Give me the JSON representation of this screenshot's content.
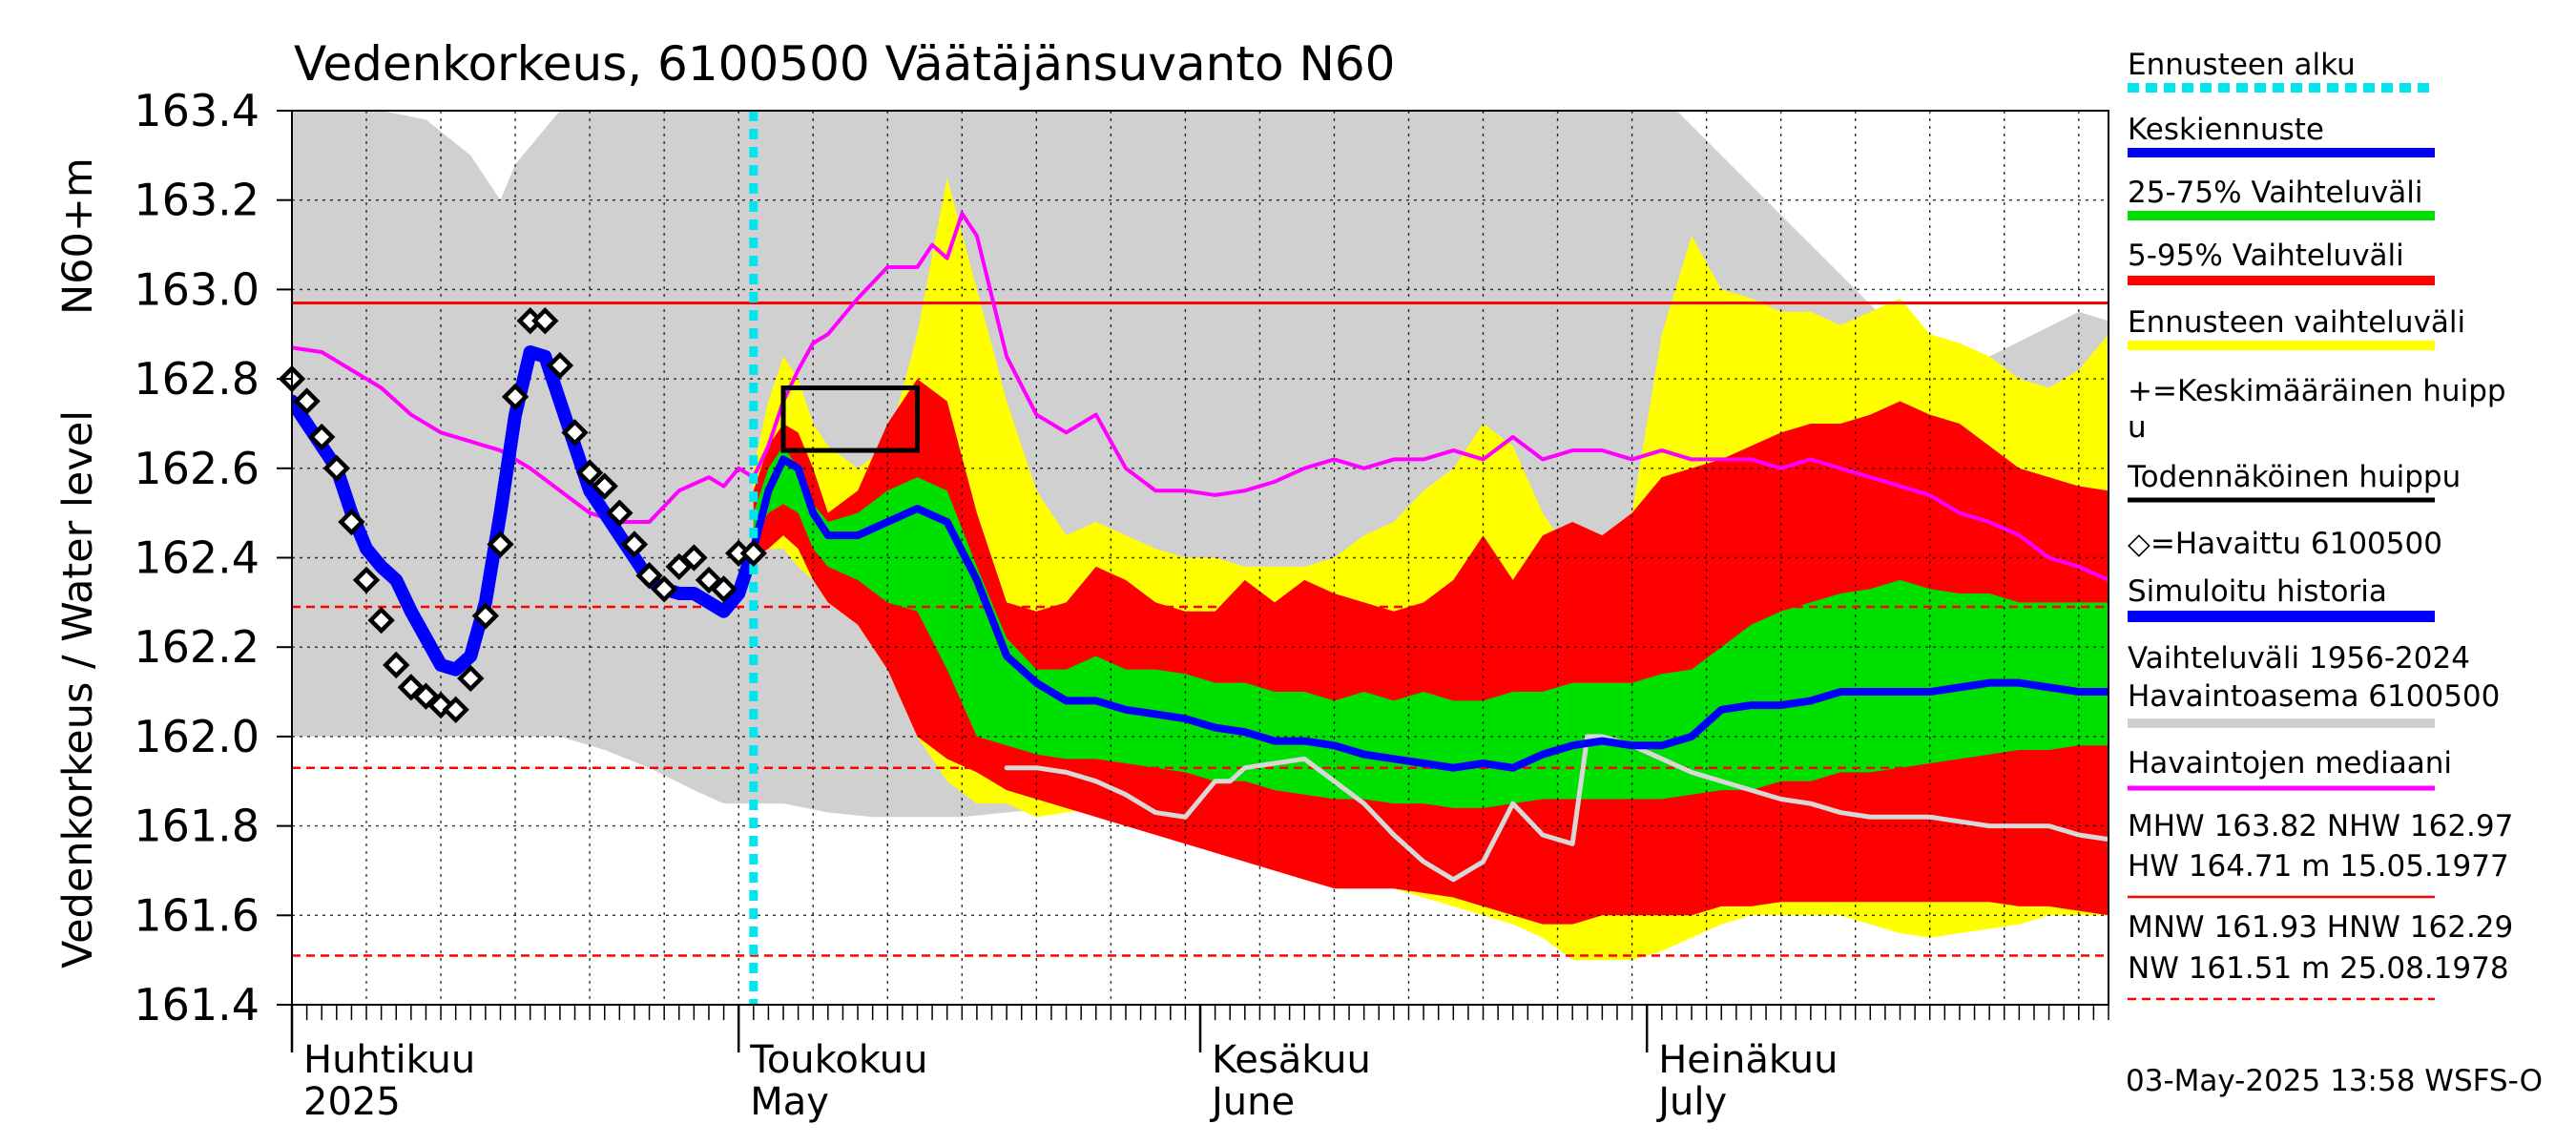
{
  "chart_data": {
    "type": "line",
    "title": "Vedenkorkeus, 6100500 Väätäjänsuvanto N60",
    "ylabel_main": "Vedenkorkeus / Water level",
    "ylabel_unit": "N60+m",
    "ylim": [
      161.4,
      163.4
    ],
    "yticks": [
      "161.4",
      "161.6",
      "161.8",
      "162.0",
      "162.2",
      "162.4",
      "162.6",
      "162.8",
      "163.0",
      "163.2",
      "163.4"
    ],
    "xrange_days": [
      0,
      122
    ],
    "month_labels": [
      {
        "day": 0,
        "fi": "Huhtikuu",
        "en": "2025"
      },
      {
        "day": 30,
        "fi": "Toukokuu",
        "en": "May"
      },
      {
        "day": 61,
        "fi": "Kesäkuu",
        "en": "June"
      },
      {
        "day": 91,
        "fi": "Heinäkuu",
        "en": "July"
      }
    ],
    "forecast_start_day": 31,
    "reference_lines": {
      "NHW": 162.97,
      "HNW": 162.29,
      "MNW": 161.93,
      "NW": 161.51
    },
    "legend": [
      {
        "label": "Ennusteen alku",
        "color": "#00e5ee",
        "style": "dotted"
      },
      {
        "label": "Keskiennuste",
        "color": "#0000ff",
        "style": "line"
      },
      {
        "label": "25-75% Vaihteluväli",
        "color": "#00e000",
        "style": "line"
      },
      {
        "label": "5-95% Vaihteluväli",
        "color": "#ff0000",
        "style": "line"
      },
      {
        "label": "Ennusteen vaihteluväli",
        "color": "#ffff00",
        "style": "line"
      },
      {
        "label": "+=Keskimääräinen huipp",
        "label2": "u",
        "color": "#000000",
        "style": "none"
      },
      {
        "label": "Todennäköinen huippu",
        "color": "#000000",
        "style": "line"
      },
      {
        "label": "◇=Havaittu 6100500",
        "color": "#000000",
        "style": "none"
      },
      {
        "label": "Simuloitu historia",
        "color": "#0000ff",
        "style": "line"
      },
      {
        "label": "Vaihteluväli 1956-2024",
        "label2": " Havaintoasema 6100500",
        "color": "#d0d0d0",
        "style": "line"
      },
      {
        "label": "Havaintojen mediaani",
        "color": "#ff00ff",
        "style": "line"
      }
    ],
    "stats": [
      {
        "line1": "MHW 163.82 NHW 162.97",
        "line2": "HW 164.71 m 15.05.1977",
        "color": "#ff0000",
        "style": "solid"
      },
      {
        "line1": "MNW 161.93 HNW 162.29",
        "line2": "NW 161.51 m 25.08.1978",
        "color": "#ff0000",
        "style": "dashed"
      }
    ],
    "timestamp": "03-May-2025 13:58 WSFS-O",
    "probable_peak_box": {
      "day_start": 33,
      "day_end": 42,
      "y_low": 162.64,
      "y_high": 162.78
    },
    "history_band": {
      "color": "#d0d0d0",
      "x": [
        0,
        3,
        6,
        9,
        12,
        14,
        15,
        18,
        21,
        24,
        27,
        29,
        31,
        33,
        36,
        39,
        42,
        45,
        48,
        51,
        54,
        57,
        60,
        63,
        66,
        69,
        72,
        75,
        78,
        81,
        84,
        87,
        90,
        93,
        96,
        99,
        102,
        105,
        108,
        111,
        114,
        117,
        120,
        122
      ],
      "upper": [
        163.4,
        163.4,
        163.4,
        163.38,
        163.3,
        163.2,
        163.28,
        163.4,
        163.4,
        163.4,
        163.4,
        163.4,
        163.4,
        163.4,
        163.4,
        163.4,
        163.4,
        163.4,
        163.4,
        163.4,
        163.4,
        163.4,
        163.4,
        163.4,
        163.4,
        163.4,
        163.4,
        163.4,
        163.4,
        163.4,
        163.4,
        163.4,
        163.4,
        163.4,
        163.3,
        163.2,
        163.1,
        163.0,
        162.9,
        162.8,
        162.85,
        162.9,
        162.95,
        162.93
      ],
      "lower": [
        162.0,
        162.0,
        162.0,
        162.0,
        162.0,
        162.0,
        162.0,
        162.0,
        161.97,
        161.93,
        161.88,
        161.85,
        161.85,
        161.85,
        161.83,
        161.82,
        161.82,
        161.82,
        161.83,
        161.84,
        161.85,
        161.86,
        161.85,
        161.84,
        161.85,
        161.86,
        161.88,
        161.9,
        161.92,
        161.93,
        161.93,
        161.92,
        161.92,
        161.92,
        161.92,
        161.92,
        161.92,
        161.92,
        161.92,
        161.92,
        161.92,
        161.92,
        161.92,
        161.92
      ]
    },
    "yellow_band": {
      "color": "#ffff00",
      "x": [
        31,
        32,
        33,
        34,
        35,
        36,
        38,
        40,
        42,
        44,
        46,
        48,
        50,
        52,
        54,
        56,
        58,
        60,
        62,
        64,
        66,
        68,
        70,
        72,
        74,
        76,
        78,
        80,
        82,
        84,
        86,
        88,
        90,
        92,
        94,
        96,
        98,
        100,
        102,
        104,
        106,
        108,
        110,
        112,
        114,
        116,
        118,
        120,
        122
      ],
      "upper": [
        162.6,
        162.75,
        162.85,
        162.8,
        162.7,
        162.65,
        162.6,
        162.65,
        162.9,
        163.25,
        163.0,
        162.75,
        162.55,
        162.45,
        162.48,
        162.45,
        162.42,
        162.4,
        162.4,
        162.38,
        162.38,
        162.38,
        162.4,
        162.45,
        162.48,
        162.55,
        162.6,
        162.7,
        162.65,
        162.5,
        162.4,
        162.45,
        162.5,
        162.9,
        163.12,
        163.0,
        162.98,
        162.95,
        162.95,
        162.92,
        162.95,
        162.98,
        162.9,
        162.88,
        162.85,
        162.8,
        162.78,
        162.82,
        162.9
      ],
      "lower": [
        162.4,
        162.42,
        162.42,
        162.38,
        162.35,
        162.3,
        162.25,
        162.15,
        162.0,
        161.9,
        161.85,
        161.85,
        161.82,
        161.83,
        161.84,
        161.84,
        161.82,
        161.8,
        161.78,
        161.76,
        161.74,
        161.72,
        161.7,
        161.68,
        161.66,
        161.64,
        161.62,
        161.6,
        161.58,
        161.55,
        161.5,
        161.5,
        161.5,
        161.52,
        161.55,
        161.58,
        161.6,
        161.6,
        161.6,
        161.6,
        161.58,
        161.56,
        161.55,
        161.56,
        161.57,
        161.58,
        161.6,
        161.6,
        161.6
      ]
    },
    "red_band": {
      "color": "#ff0000",
      "x": [
        31,
        32,
        33,
        34,
        35,
        36,
        38,
        40,
        42,
        44,
        46,
        48,
        50,
        52,
        54,
        56,
        58,
        60,
        62,
        64,
        66,
        68,
        70,
        72,
        74,
        76,
        78,
        80,
        82,
        84,
        86,
        88,
        90,
        92,
        94,
        96,
        98,
        100,
        102,
        104,
        106,
        108,
        110,
        112,
        114,
        116,
        118,
        120,
        122
      ],
      "upper": [
        162.55,
        162.65,
        162.7,
        162.68,
        162.6,
        162.5,
        162.55,
        162.7,
        162.8,
        162.75,
        162.5,
        162.3,
        162.28,
        162.3,
        162.38,
        162.35,
        162.3,
        162.28,
        162.28,
        162.35,
        162.3,
        162.35,
        162.32,
        162.3,
        162.28,
        162.3,
        162.35,
        162.45,
        162.35,
        162.45,
        162.48,
        162.45,
        162.5,
        162.58,
        162.6,
        162.62,
        162.65,
        162.68,
        162.7,
        162.7,
        162.72,
        162.75,
        162.72,
        162.7,
        162.65,
        162.6,
        162.58,
        162.56,
        162.55
      ],
      "lower": [
        162.4,
        162.42,
        162.45,
        162.42,
        162.35,
        162.3,
        162.25,
        162.15,
        162.0,
        161.95,
        161.92,
        161.88,
        161.86,
        161.84,
        161.82,
        161.8,
        161.78,
        161.76,
        161.74,
        161.72,
        161.7,
        161.68,
        161.66,
        161.66,
        161.66,
        161.65,
        161.64,
        161.62,
        161.6,
        161.58,
        161.58,
        161.6,
        161.6,
        161.6,
        161.6,
        161.62,
        161.62,
        161.63,
        161.63,
        161.63,
        161.63,
        161.63,
        161.63,
        161.63,
        161.63,
        161.62,
        161.62,
        161.61,
        161.6
      ]
    },
    "green_band": {
      "color": "#00e000",
      "x": [
        31,
        32,
        33,
        34,
        35,
        36,
        38,
        40,
        42,
        44,
        46,
        48,
        50,
        52,
        54,
        56,
        58,
        60,
        62,
        64,
        66,
        68,
        70,
        72,
        74,
        76,
        78,
        80,
        82,
        84,
        86,
        88,
        90,
        92,
        94,
        96,
        98,
        100,
        102,
        104,
        106,
        108,
        110,
        112,
        114,
        116,
        118,
        120,
        122
      ],
      "upper": [
        162.5,
        162.6,
        162.65,
        162.6,
        162.52,
        162.48,
        162.5,
        162.55,
        162.58,
        162.55,
        162.38,
        162.22,
        162.15,
        162.15,
        162.18,
        162.15,
        162.15,
        162.14,
        162.12,
        162.12,
        162.1,
        162.1,
        162.08,
        162.1,
        162.08,
        162.1,
        162.08,
        162.08,
        162.1,
        162.1,
        162.12,
        162.12,
        162.12,
        162.14,
        162.15,
        162.2,
        162.25,
        162.28,
        162.3,
        162.32,
        162.33,
        162.35,
        162.33,
        162.32,
        162.32,
        162.3,
        162.3,
        162.3,
        162.3
      ],
      "lower": [
        162.45,
        162.5,
        162.52,
        162.5,
        162.42,
        162.38,
        162.35,
        162.3,
        162.28,
        162.15,
        162.0,
        161.98,
        161.96,
        161.95,
        161.95,
        161.94,
        161.93,
        161.92,
        161.9,
        161.9,
        161.88,
        161.87,
        161.86,
        161.86,
        161.85,
        161.85,
        161.84,
        161.84,
        161.85,
        161.86,
        161.86,
        161.86,
        161.86,
        161.86,
        161.87,
        161.88,
        161.88,
        161.9,
        161.9,
        161.92,
        161.92,
        161.93,
        161.94,
        161.95,
        161.96,
        161.97,
        161.97,
        161.98,
        161.98
      ]
    },
    "series": [
      {
        "name": "Keskiennuste",
        "color": "#0000ff",
        "width": 8,
        "x": [
          31,
          32,
          33,
          34,
          35,
          36,
          38,
          40,
          42,
          44,
          46,
          48,
          50,
          52,
          54,
          56,
          58,
          60,
          62,
          64,
          66,
          68,
          70,
          72,
          74,
          76,
          78,
          80,
          82,
          84,
          86,
          88,
          90,
          92,
          94,
          96,
          98,
          100,
          102,
          104,
          106,
          108,
          110,
          112,
          114,
          116,
          118,
          120,
          122
        ],
        "y": [
          162.42,
          162.55,
          162.62,
          162.6,
          162.5,
          162.45,
          162.45,
          162.48,
          162.51,
          162.48,
          162.35,
          162.18,
          162.12,
          162.08,
          162.08,
          162.06,
          162.05,
          162.04,
          162.02,
          162.01,
          161.99,
          161.99,
          161.98,
          161.96,
          161.95,
          161.94,
          161.93,
          161.94,
          161.93,
          161.96,
          161.98,
          161.99,
          161.98,
          161.98,
          162.0,
          162.06,
          162.07,
          162.07,
          162.08,
          162.1,
          162.1,
          162.1,
          162.1,
          162.11,
          162.12,
          162.12,
          162.11,
          162.1,
          162.1
        ]
      },
      {
        "name": "Simuloitu historia",
        "color": "#0000ff",
        "width": 14,
        "x": [
          0,
          1,
          2,
          3,
          4,
          5,
          6,
          7,
          8,
          9,
          10,
          11,
          12,
          13,
          14,
          15,
          16,
          17,
          18,
          19,
          20,
          21,
          22,
          23,
          24,
          25,
          26,
          27,
          28,
          29,
          30,
          31
        ],
        "y": [
          162.75,
          162.7,
          162.65,
          162.6,
          162.5,
          162.42,
          162.38,
          162.35,
          162.28,
          162.22,
          162.16,
          162.15,
          162.18,
          162.3,
          162.5,
          162.72,
          162.86,
          162.85,
          162.75,
          162.65,
          162.55,
          162.5,
          162.45,
          162.4,
          162.35,
          162.33,
          162.32,
          162.32,
          162.3,
          162.28,
          162.32,
          162.42
        ]
      },
      {
        "name": "Havaintojen mediaani",
        "color": "#ff00ff",
        "width": 4,
        "x": [
          0,
          2,
          4,
          6,
          8,
          10,
          12,
          14,
          16,
          18,
          20,
          22,
          24,
          26,
          28,
          29,
          30,
          31,
          32,
          33,
          34,
          35,
          36,
          38,
          40,
          42,
          43,
          44,
          45,
          46,
          48,
          50,
          52,
          54,
          56,
          58,
          60,
          62,
          64,
          66,
          68,
          70,
          72,
          74,
          76,
          78,
          80,
          82,
          84,
          86,
          88,
          90,
          92,
          94,
          96,
          98,
          100,
          102,
          104,
          106,
          108,
          110,
          112,
          114,
          116,
          118,
          120,
          122
        ],
        "y": [
          162.87,
          162.86,
          162.82,
          162.78,
          162.72,
          162.68,
          162.66,
          162.64,
          162.6,
          162.55,
          162.5,
          162.48,
          162.48,
          162.55,
          162.58,
          162.56,
          162.6,
          162.58,
          162.65,
          162.75,
          162.82,
          162.88,
          162.9,
          162.98,
          163.05,
          163.05,
          163.1,
          163.07,
          163.17,
          163.12,
          162.85,
          162.72,
          162.68,
          162.72,
          162.6,
          162.55,
          162.55,
          162.54,
          162.55,
          162.57,
          162.6,
          162.62,
          162.6,
          162.62,
          162.62,
          162.64,
          162.62,
          162.67,
          162.62,
          162.64,
          162.64,
          162.62,
          162.64,
          162.62,
          162.62,
          162.62,
          162.6,
          162.62,
          162.6,
          162.58,
          162.56,
          162.54,
          162.5,
          162.48,
          162.45,
          162.4,
          162.38,
          162.35
        ]
      },
      {
        "name": "Vaihteluväli 1956-2024 median (grey)",
        "color": "#d8d8d8",
        "width": 5,
        "x": [
          48,
          50,
          52,
          54,
          56,
          58,
          60,
          62,
          63,
          64,
          66,
          68,
          70,
          72,
          74,
          76,
          78,
          80,
          82,
          84,
          86,
          87,
          88,
          90,
          92,
          94,
          96,
          98,
          100,
          102,
          104,
          106,
          108,
          110,
          112,
          114,
          116,
          118,
          120,
          122
        ],
        "y": [
          161.93,
          161.93,
          161.92,
          161.9,
          161.87,
          161.83,
          161.82,
          161.9,
          161.9,
          161.93,
          161.94,
          161.95,
          161.9,
          161.85,
          161.78,
          161.72,
          161.68,
          161.72,
          161.85,
          161.78,
          161.76,
          162.0,
          162.0,
          161.98,
          161.95,
          161.92,
          161.9,
          161.88,
          161.86,
          161.85,
          161.83,
          161.82,
          161.82,
          161.82,
          161.81,
          161.8,
          161.8,
          161.8,
          161.78,
          161.77
        ]
      }
    ],
    "observed": {
      "name": "Havaittu 6100500",
      "x": [
        0,
        1,
        2,
        3,
        4,
        5,
        6,
        7,
        8,
        9,
        10,
        11,
        12,
        13,
        14,
        15,
        16,
        17,
        18,
        19,
        20,
        21,
        22,
        23,
        24,
        25,
        26,
        27,
        28,
        29,
        30,
        31
      ],
      "y": [
        162.8,
        162.75,
        162.67,
        162.6,
        162.48,
        162.35,
        162.26,
        162.16,
        162.11,
        162.09,
        162.07,
        162.06,
        162.13,
        162.27,
        162.43,
        162.76,
        162.93,
        162.93,
        162.83,
        162.68,
        162.59,
        162.56,
        162.5,
        162.43,
        162.36,
        162.33,
        162.38,
        162.4,
        162.35,
        162.33,
        162.41,
        162.41
      ]
    }
  }
}
